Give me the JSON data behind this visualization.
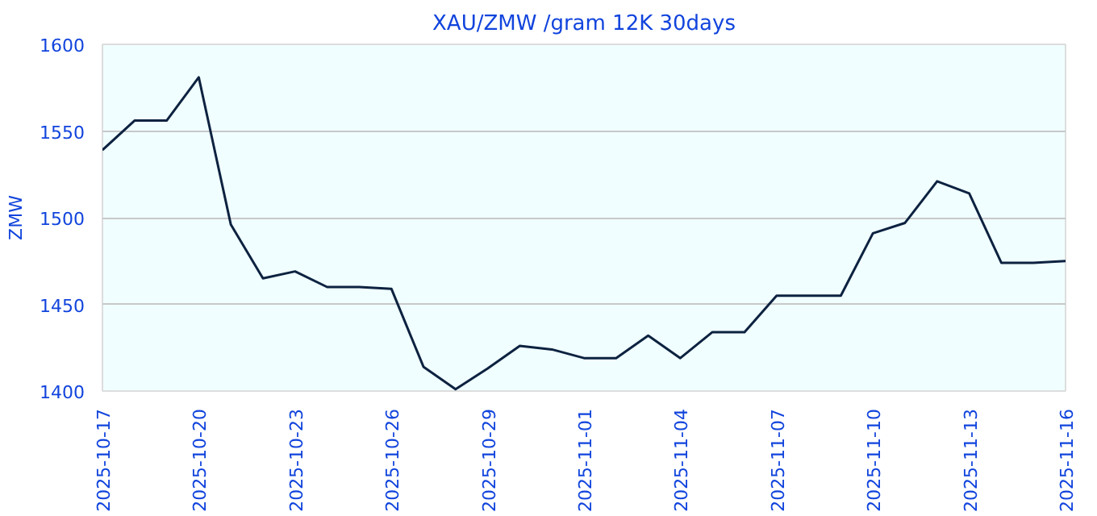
{
  "chart_data": {
    "type": "line",
    "title": "XAU/ZMW /gram 12K 30days",
    "ylabel": "ZMW",
    "x": [
      "2025-10-17",
      "2025-10-18",
      "2025-10-19",
      "2025-10-20",
      "2025-10-21",
      "2025-10-22",
      "2025-10-23",
      "2025-10-24",
      "2025-10-25",
      "2025-10-26",
      "2025-10-27",
      "2025-10-28",
      "2025-10-29",
      "2025-10-30",
      "2025-10-31",
      "2025-11-01",
      "2025-11-02",
      "2025-11-03",
      "2025-11-04",
      "2025-11-05",
      "2025-11-06",
      "2025-11-07",
      "2025-11-08",
      "2025-11-09",
      "2025-11-10",
      "2025-11-11",
      "2025-11-12",
      "2025-11-13",
      "2025-11-14",
      "2025-11-15",
      "2025-11-16"
    ],
    "series": [
      {
        "color": "#0d2240",
        "values": [
          1539,
          1556,
          1556,
          1581,
          1496,
          1465,
          1469,
          1460,
          1460,
          1459,
          1414,
          1401,
          1413,
          1426,
          1424,
          1419,
          1419,
          1432,
          1419,
          1434,
          1434,
          1455,
          1455,
          1455,
          1491,
          1497,
          1521,
          1514,
          1474,
          1474,
          1475
        ]
      }
    ],
    "xlim": [
      "2025-10-17",
      "2025-11-16"
    ],
    "xticks": [
      "2025-10-17",
      "2025-10-20",
      "2025-10-23",
      "2025-10-26",
      "2025-10-29",
      "2025-11-01",
      "2025-11-04",
      "2025-11-07",
      "2025-11-10",
      "2025-11-13",
      "2025-11-16"
    ],
    "ylim": [
      1400,
      1600
    ],
    "yticks": [
      1400,
      1450,
      1500,
      1550,
      1600
    ],
    "grid": "y",
    "marker": "none",
    "line_style": "solid"
  }
}
